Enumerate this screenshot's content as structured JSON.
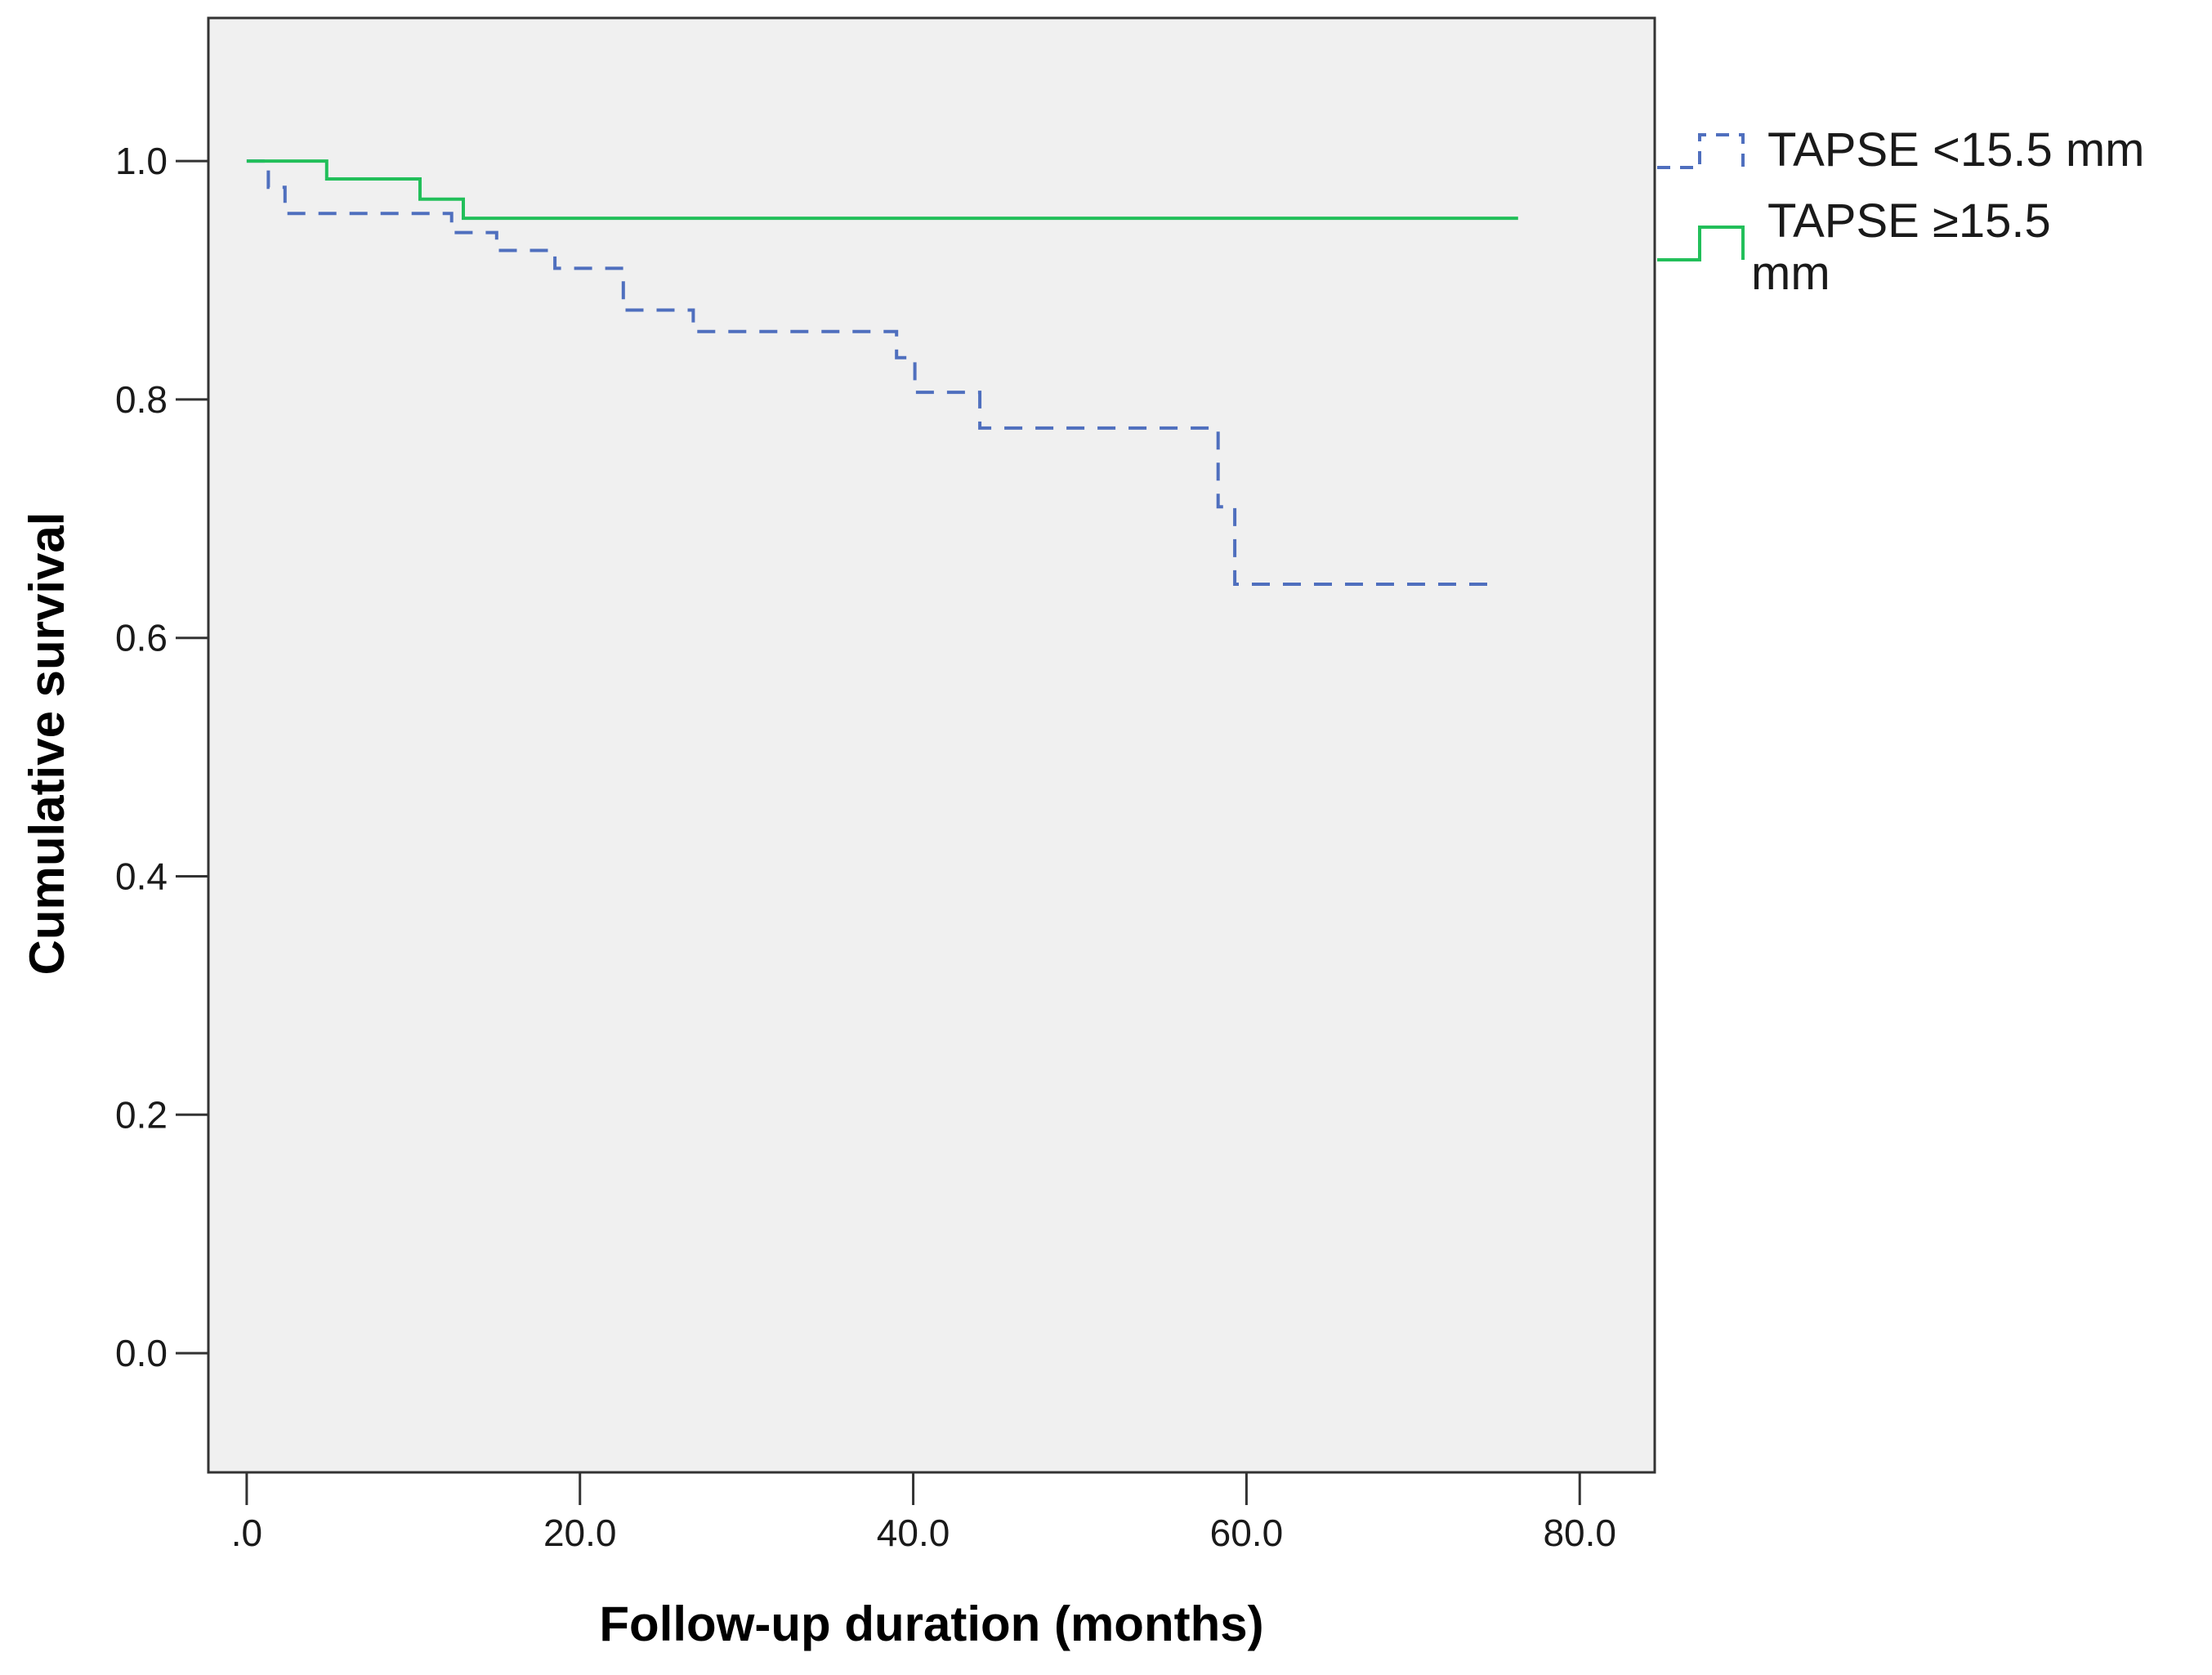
{
  "chart_data": {
    "type": "line",
    "subtype": "kaplan-meier-step",
    "title": "",
    "xlabel": "Follow-up duration (months)",
    "ylabel": "Cumulative survival",
    "xlim": [
      -2.3,
      84.5
    ],
    "ylim": [
      -0.1,
      1.12
    ],
    "x_ticks": [
      0,
      20,
      40,
      60,
      80
    ],
    "x_tick_labels": [
      ".0",
      "20.0",
      "40.0",
      "60.0",
      "80.0"
    ],
    "y_ticks": [
      0,
      0.2,
      0.4,
      0.6,
      0.8,
      1.0
    ],
    "y_tick_labels": [
      "0.0",
      "0.2",
      "0.4",
      "0.6",
      "0.8",
      "1.0"
    ],
    "grid": false,
    "background": "#f0f0f0",
    "legend_position": "right",
    "series": [
      {
        "name": "TAPSE <15.5 mm",
        "legend_lines": [
          "TAPSE <15.5 mm"
        ],
        "color": "#4f6fbe",
        "dashed": true,
        "steps": [
          [
            0,
            1.0
          ],
          [
            1.3,
            0.978
          ],
          [
            2.3,
            0.956
          ],
          [
            12.3,
            0.94
          ],
          [
            15.0,
            0.925
          ],
          [
            18.5,
            0.91
          ],
          [
            22.6,
            0.875
          ],
          [
            26.8,
            0.857
          ],
          [
            39.0,
            0.835
          ],
          [
            40.1,
            0.806
          ],
          [
            44.0,
            0.776
          ],
          [
            58.3,
            0.71
          ],
          [
            59.3,
            0.645
          ],
          [
            74.5,
            0.645
          ]
        ]
      },
      {
        "name": "TAPSE ≥15.5 mm",
        "legend_lines": [
          "TAPSE ≥15.5",
          "mm"
        ],
        "color": "#22bf5a",
        "dashed": false,
        "steps": [
          [
            0,
            1.0
          ],
          [
            4.8,
            0.985
          ],
          [
            10.4,
            0.968
          ],
          [
            13.0,
            0.952
          ],
          [
            76.3,
            0.952
          ]
        ]
      }
    ]
  }
}
